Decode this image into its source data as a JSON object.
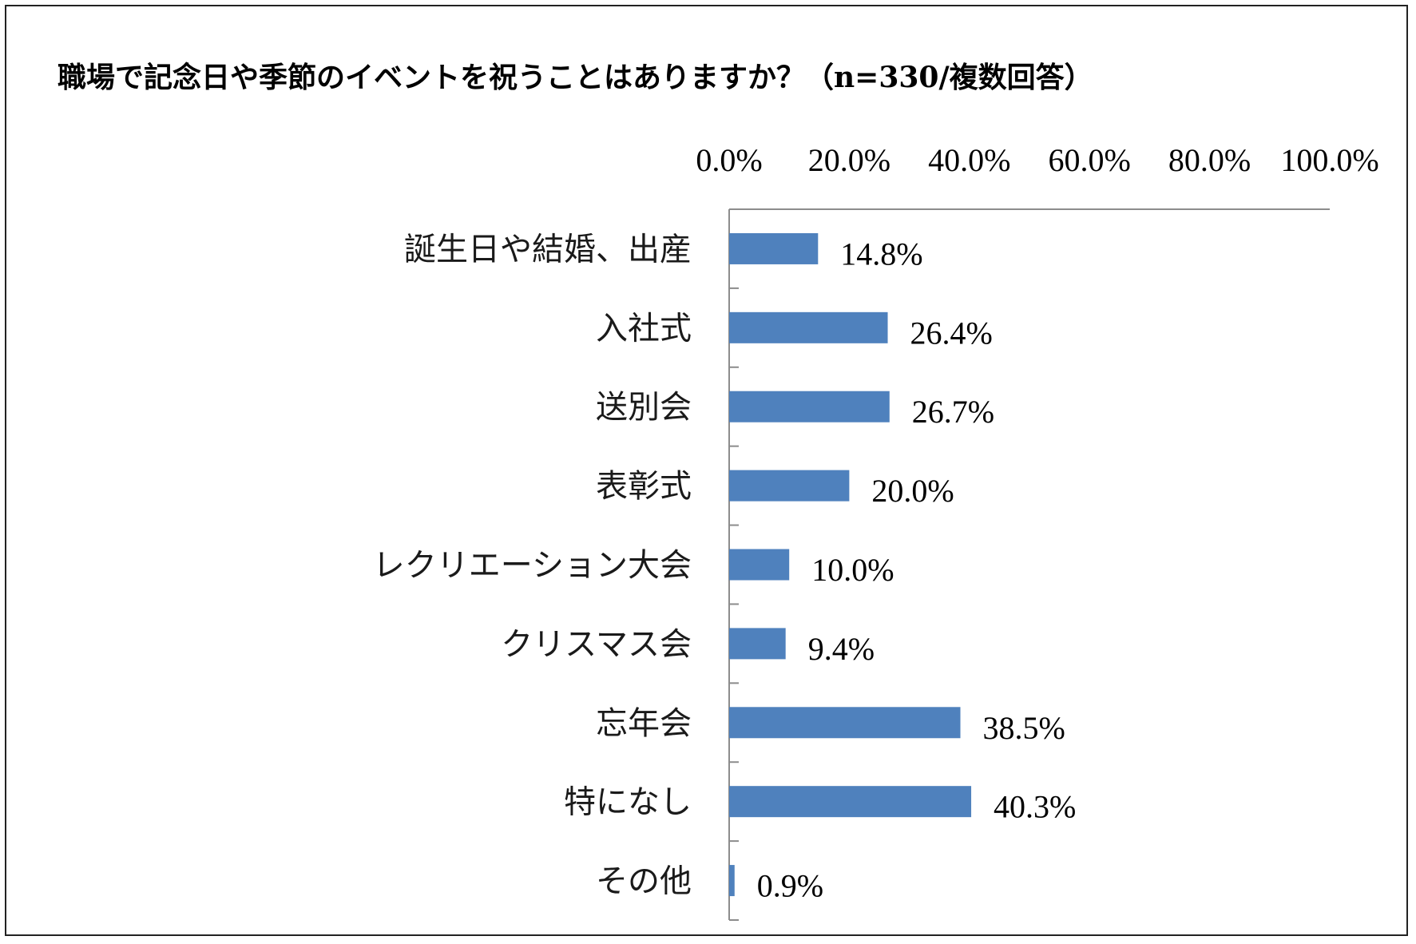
{
  "chart_data": {
    "type": "bar",
    "orientation": "horizontal",
    "title": "職場で記念日や季節のイベントを祝うことはありますか？（n=330/複数回答）",
    "categories": [
      "誕生日や結婚、出産",
      "入社式",
      "送別会",
      "表彰式",
      "レクリエーション大会",
      "クリスマス会",
      "忘年会",
      "特になし",
      "その他"
    ],
    "values": [
      14.8,
      26.4,
      26.7,
      20.0,
      10.0,
      9.4,
      38.5,
      40.3,
      0.9
    ],
    "value_labels": [
      "14.8%",
      "26.4%",
      "26.7%",
      "20.0%",
      "10.0%",
      "9.4%",
      "38.5%",
      "40.3%",
      "0.9%"
    ],
    "x_ticks": [
      "0.0%",
      "20.0%",
      "40.0%",
      "60.0%",
      "80.0%",
      "100.0%"
    ],
    "xlim": [
      0,
      100
    ],
    "axis_position": "top",
    "grid": false,
    "bar_color": "#4f81bd"
  }
}
